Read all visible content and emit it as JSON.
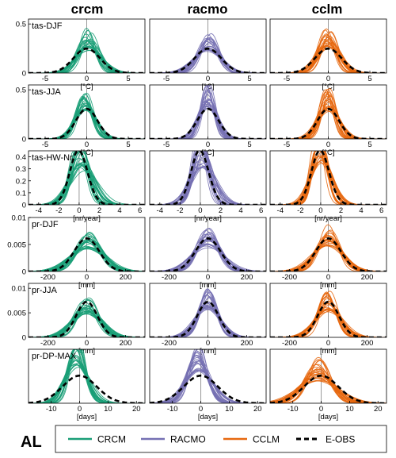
{
  "figure": {
    "region_label": "AL",
    "column_titles": [
      "crcm",
      "racmo",
      "cclm"
    ],
    "colors": {
      "CRCM": "#1a9e77",
      "RACMO": "#7570b3",
      "CCLM": "#e7680f",
      "E-OBS": "#000000",
      "zero_line": "#999999"
    },
    "legend": [
      {
        "label": "CRCM",
        "color": "#1a9e77",
        "style": "solid"
      },
      {
        "label": "RACMO",
        "color": "#7570b3",
        "style": "solid"
      },
      {
        "label": "CCLM",
        "color": "#e7680f",
        "style": "solid"
      },
      {
        "label": "E-OBS",
        "color": "#000000",
        "style": "dashed"
      }
    ]
  },
  "chart_data": [
    {
      "type": "line",
      "row_label": "tas-DJF",
      "xlabel": "[°C]",
      "xlim": [
        -7,
        7
      ],
      "ylim": [
        0,
        0.55
      ],
      "xticks": [
        -5,
        0,
        5
      ],
      "yticks": [
        0,
        0.5
      ],
      "ytick_labels": [
        "0",
        "0.5"
      ],
      "obs": {
        "name": "E-OBS",
        "mean": 0,
        "sd": 1.6
      },
      "models": {
        "CRCM": {
          "mean": 0.2,
          "sd": 1.3,
          "mean_spread": 0.4,
          "sd_spread": 0.35
        },
        "RACMO": {
          "mean": 0.1,
          "sd": 1.4,
          "mean_spread": 0.3,
          "sd_spread": 0.3
        },
        "CCLM": {
          "mean": 0.0,
          "sd": 1.2,
          "mean_spread": 0.4,
          "sd_spread": 0.3
        }
      }
    },
    {
      "type": "line",
      "row_label": "tas-JJA",
      "xlabel": "[°C]",
      "xlim": [
        -7,
        7
      ],
      "ylim": [
        0,
        0.55
      ],
      "xticks": [
        -5,
        0,
        5
      ],
      "yticks": [
        0,
        0.5
      ],
      "ytick_labels": [
        "0",
        "0.5"
      ],
      "obs": {
        "name": "E-OBS",
        "mean": 0,
        "sd": 1.3
      },
      "models": {
        "CRCM": {
          "mean": -0.2,
          "sd": 1.1,
          "mean_spread": 0.3,
          "sd_spread": 0.25
        },
        "RACMO": {
          "mean": 0.0,
          "sd": 1.0,
          "mean_spread": 0.25,
          "sd_spread": 0.3
        },
        "CCLM": {
          "mean": -0.1,
          "sd": 1.1,
          "mean_spread": 0.35,
          "sd_spread": 0.3
        }
      }
    },
    {
      "type": "line",
      "row_label": "tas-HW-Nr",
      "xlabel": "[nr/year]",
      "xlim": [
        -5,
        6.5
      ],
      "ylim": [
        0,
        0.45
      ],
      "xticks": [
        -4,
        -2,
        0,
        2,
        4,
        6
      ],
      "yticks": [
        0,
        0.1,
        0.2,
        0.3,
        0.4
      ],
      "ytick_labels": [
        "0",
        "0.1",
        "0.2",
        "0.3",
        "0.4"
      ],
      "obs": {
        "name": "E-OBS",
        "mean": -0.5,
        "sd": 1.0,
        "skew": 0.7
      },
      "models": {
        "CRCM": {
          "mean": -0.3,
          "sd": 1.2,
          "mean_spread": 0.3,
          "sd_spread": 0.35,
          "skew": 0.6
        },
        "RACMO": {
          "mean": -0.3,
          "sd": 1.1,
          "mean_spread": 0.3,
          "sd_spread": 0.35,
          "skew": 0.6
        },
        "CCLM": {
          "mean": -0.5,
          "sd": 1.0,
          "mean_spread": 0.25,
          "sd_spread": 0.3,
          "skew": 0.7
        }
      }
    },
    {
      "type": "line",
      "row_label": "pr-DJF",
      "xlabel": "[mm]",
      "xlim": [
        -300,
        300
      ],
      "ylim": [
        0,
        0.01
      ],
      "xticks": [
        -200,
        0,
        200
      ],
      "yticks": [
        0,
        0.005,
        0.01
      ],
      "ytick_labels": [
        "0",
        "0.005",
        "0.01"
      ],
      "obs": {
        "name": "E-OBS",
        "mean": 0,
        "sd": 65
      },
      "models": {
        "CRCM": {
          "mean": 10,
          "sd": 75,
          "mean_spread": 15,
          "sd_spread": 0.3
        },
        "RACMO": {
          "mean": 0,
          "sd": 70,
          "mean_spread": 12,
          "sd_spread": 0.3
        },
        "CCLM": {
          "mean": 0,
          "sd": 65,
          "mean_spread": 12,
          "sd_spread": 0.3
        }
      }
    },
    {
      "type": "line",
      "row_label": "pr-JJA",
      "xlabel": "[mm]",
      "xlim": [
        -300,
        300
      ],
      "ylim": [
        0,
        0.011
      ],
      "xticks": [
        -200,
        0,
        200
      ],
      "yticks": [
        0,
        0.005,
        0.01
      ],
      "ytick_labels": [
        "0",
        "0.005",
        "0.01"
      ],
      "obs": {
        "name": "E-OBS",
        "mean": 0,
        "sd": 55
      },
      "models": {
        "CRCM": {
          "mean": 0,
          "sd": 65,
          "mean_spread": 15,
          "sd_spread": 0.3
        },
        "RACMO": {
          "mean": 0,
          "sd": 55,
          "mean_spread": 10,
          "sd_spread": 0.3
        },
        "CCLM": {
          "mean": 0,
          "sd": 60,
          "mean_spread": 12,
          "sd_spread": 0.3
        }
      }
    },
    {
      "type": "line",
      "row_label": "pr-DP-MAX",
      "xlabel": "[days]",
      "xlim": [
        -18,
        23
      ],
      "ylim": [
        0,
        0.13
      ],
      "xticks": [
        -10,
        0,
        10,
        20
      ],
      "yticks": [],
      "ytick_labels": [],
      "obs": {
        "name": "E-OBS",
        "mean": 0,
        "sd": 6.0
      },
      "models": {
        "CRCM": {
          "mean": -1,
          "sd": 3.5,
          "mean_spread": 0.8,
          "sd_spread": 0.35
        },
        "RACMO": {
          "mean": -1,
          "sd": 4.0,
          "mean_spread": 0.8,
          "sd_spread": 0.3
        },
        "CCLM": {
          "mean": -1,
          "sd": 5.5,
          "mean_spread": 1.0,
          "sd_spread": 0.35
        }
      }
    }
  ]
}
